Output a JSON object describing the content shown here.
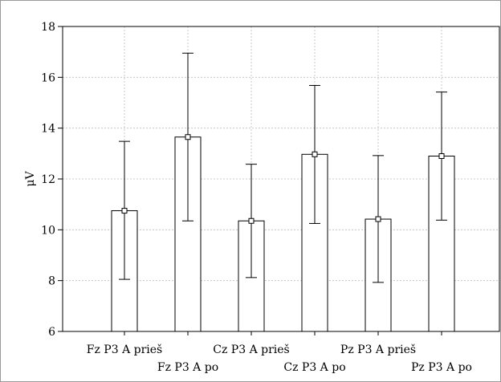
{
  "chart_data": {
    "type": "bar",
    "ylabel": "μV",
    "ylim": [
      6,
      18
    ],
    "yticks": [
      6,
      8,
      10,
      12,
      14,
      16,
      18
    ],
    "grid": true,
    "categories": [
      "Fz P3 A prieš",
      "Fz P3 A po",
      "Cz P3 A prieš",
      "Cz P3 A po",
      "Pz P3 A prieš",
      "Pz P3 A po"
    ],
    "series": [
      {
        "values": [
          10.75,
          13.65,
          10.35,
          12.97,
          10.42,
          12.9
        ],
        "error_low": [
          8.05,
          10.35,
          8.12,
          10.25,
          7.93,
          10.38
        ],
        "error_high": [
          13.48,
          16.95,
          12.58,
          15.68,
          12.92,
          15.42
        ]
      }
    ]
  }
}
